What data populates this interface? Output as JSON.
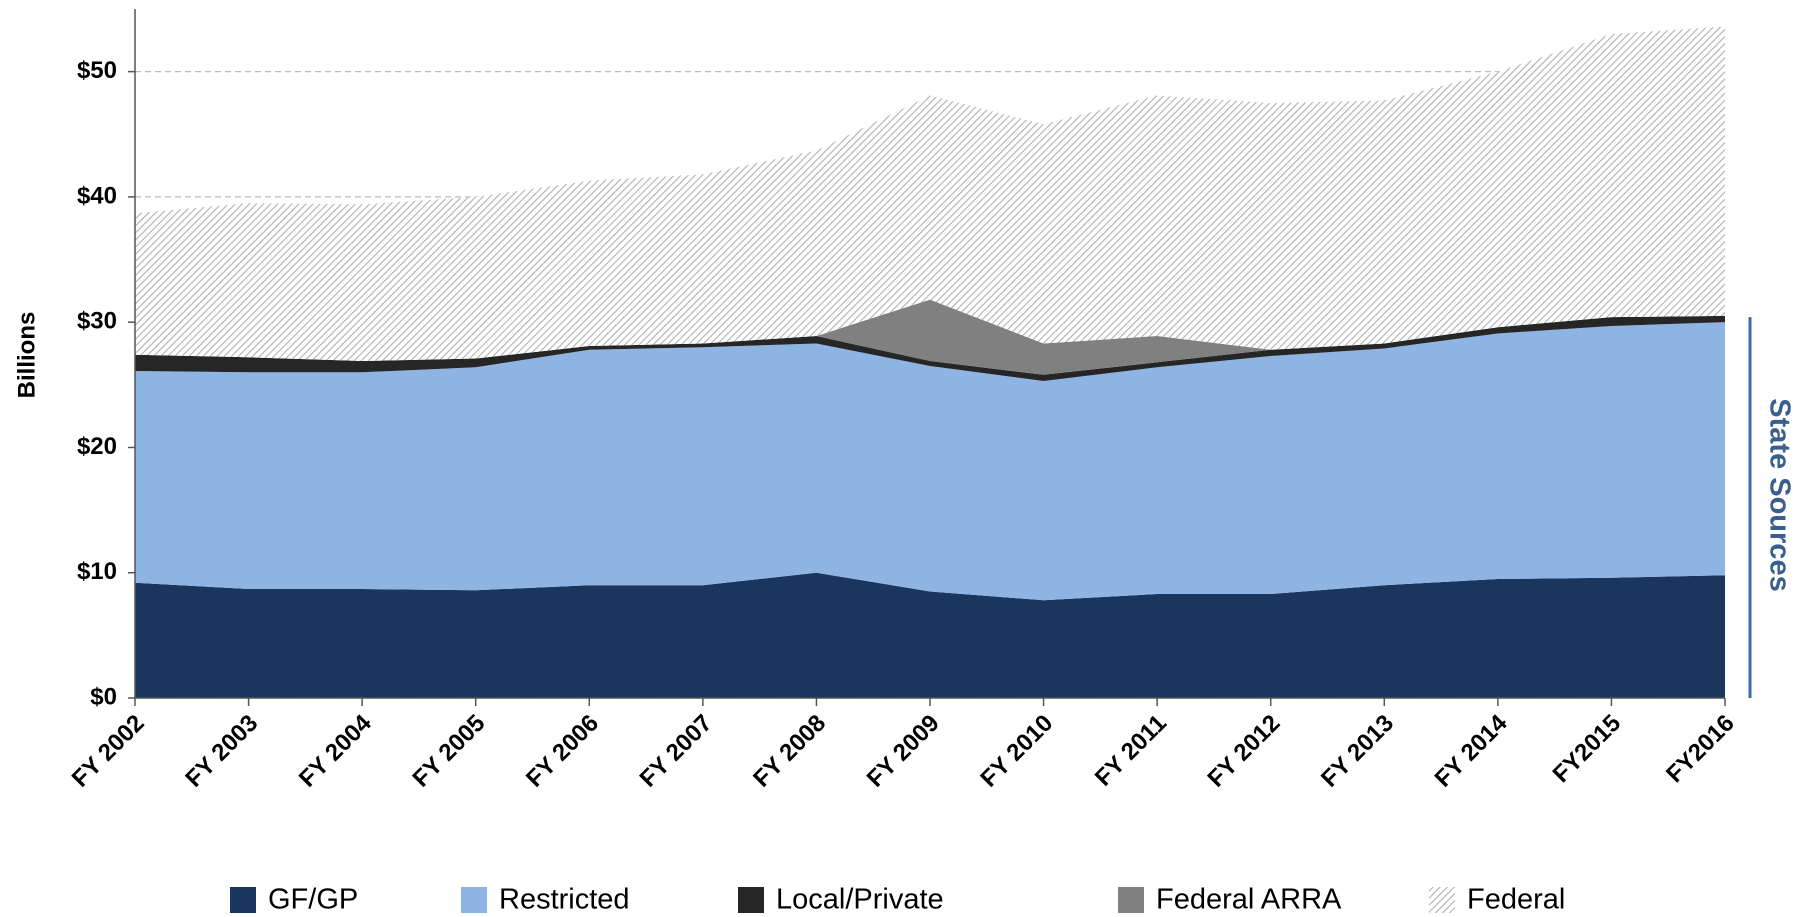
{
  "chart_data": {
    "type": "stacked_area",
    "y_label": "Billions",
    "annotation": "State Sources",
    "categories": [
      "FY 2002",
      "FY 2003",
      "FY 2004",
      "FY 2005",
      "FY 2006",
      "FY 2007",
      "FY 2008",
      "FY 2009",
      "FY 2010",
      "FY 2011",
      "FY 2012",
      "FY 2013",
      "FY 2014",
      "FY2015",
      "FY2016"
    ],
    "series": [
      {
        "name": "GF/GP",
        "color": "#1a365d",
        "values": [
          9.2,
          8.7,
          8.7,
          8.6,
          9.0,
          9.0,
          10.0,
          8.5,
          7.8,
          8.3,
          8.3,
          9.0,
          9.5,
          9.6,
          9.8
        ]
      },
      {
        "name": "Restricted",
        "color": "#8eb4e3",
        "values": [
          16.9,
          17.3,
          17.3,
          17.8,
          18.8,
          19.0,
          18.3,
          18.0,
          17.5,
          18.1,
          19.0,
          18.9,
          19.6,
          20.1,
          20.2
        ]
      },
      {
        "name": "Local/Private",
        "color": "#262626",
        "values": [
          1.3,
          1.2,
          0.9,
          0.7,
          0.3,
          0.3,
          0.6,
          0.4,
          0.5,
          0.4,
          0.5,
          0.4,
          0.5,
          0.7,
          0.5
        ]
      },
      {
        "name": "Federal ARRA",
        "color": "#808080",
        "values": [
          0,
          0,
          0,
          0,
          0,
          0,
          0,
          4.9,
          2.5,
          2.1,
          0,
          0,
          0,
          0,
          0
        ]
      },
      {
        "name": "Federal",
        "color": "#b0b0b0",
        "hatched": true,
        "values": [
          11.3,
          12.3,
          12.5,
          12.9,
          13.2,
          13.5,
          14.8,
          16.3,
          17.5,
          19.2,
          19.7,
          19.4,
          20.4,
          22.6,
          23.1
        ]
      }
    ],
    "ylim": [
      0,
      55
    ],
    "yticks": [
      {
        "value": 0,
        "label": "$0"
      },
      {
        "value": 10,
        "label": "$10"
      },
      {
        "value": 20,
        "label": "$20"
      },
      {
        "value": 30,
        "label": "$30"
      },
      {
        "value": 40,
        "label": "$40"
      },
      {
        "value": 50,
        "label": "$50"
      }
    ],
    "grid": true,
    "state_sources_range": [
      0,
      30.4
    ]
  }
}
